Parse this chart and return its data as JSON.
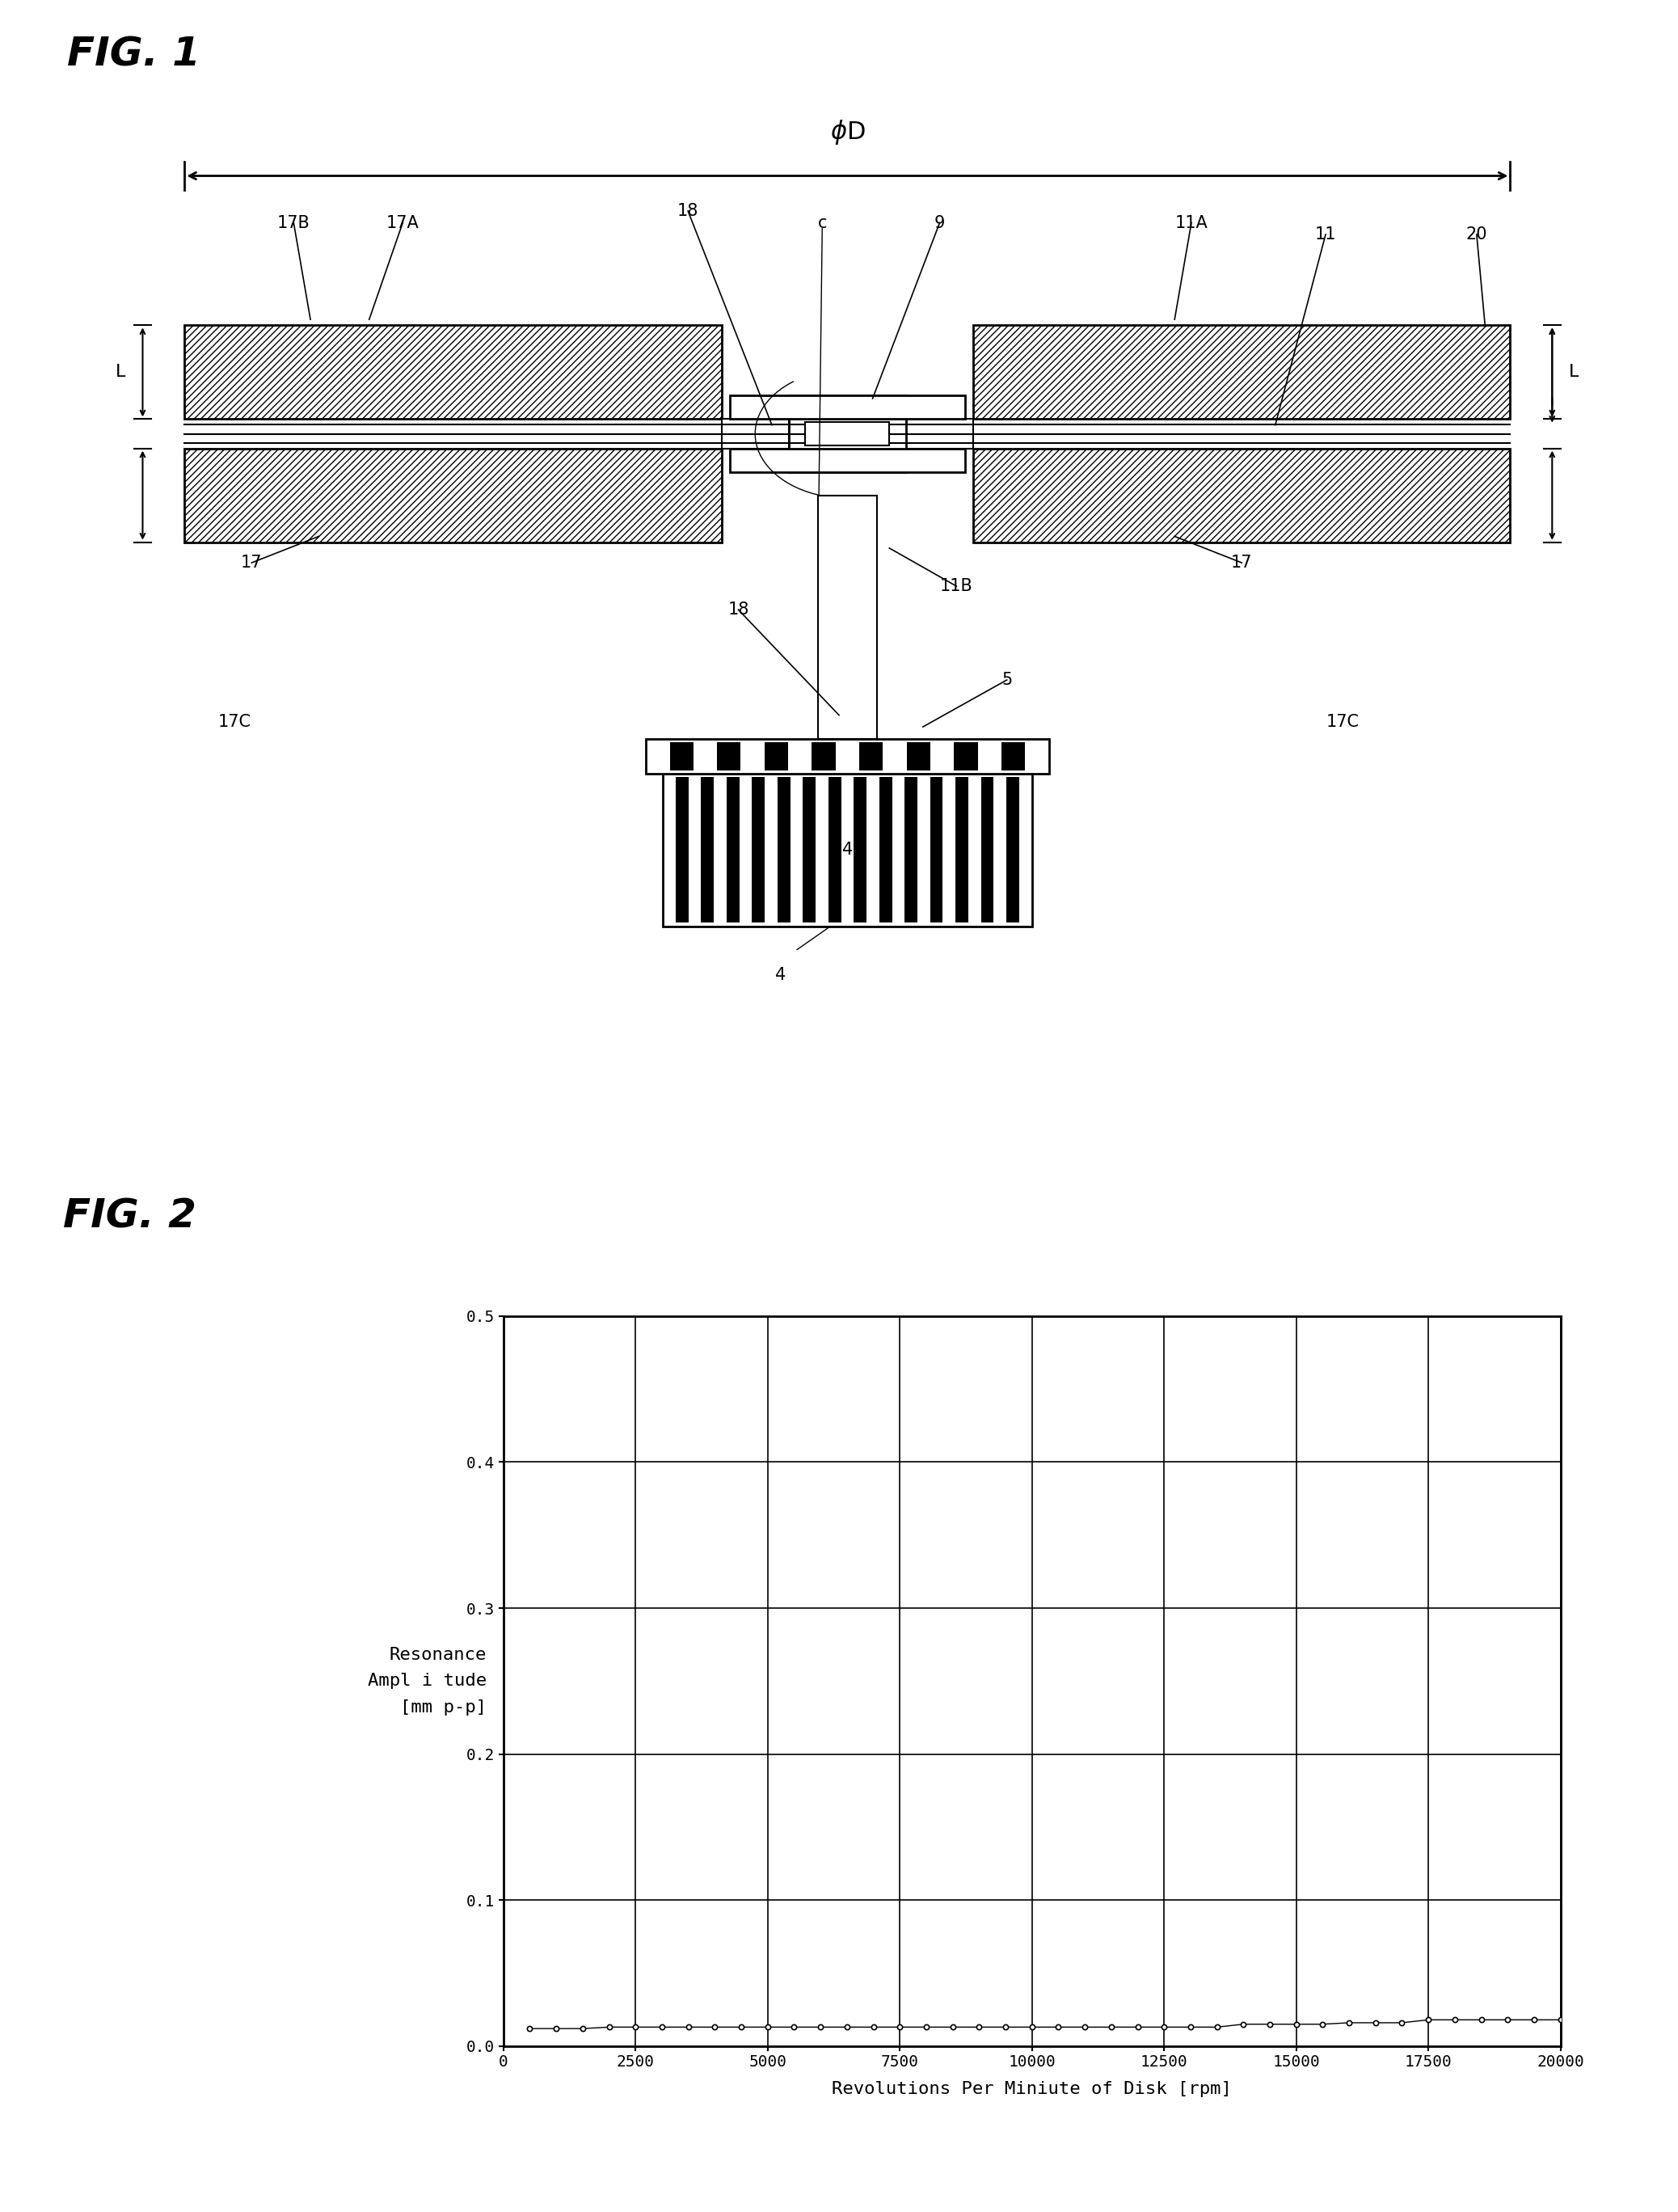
{
  "fig_width": 20.76,
  "fig_height": 27.36,
  "bg_color": "#ffffff",
  "fig1_title": "FIG. 1",
  "fig2_title": "FIG. 2",
  "fig2_ylabel_lines": [
    "Resonance",
    "Ampl i tude",
    "[mm p-p]"
  ],
  "fig2_xlabel": "Revolutions Per Miniute of Disk [rpm]",
  "fig2_xticks": [
    0,
    2500,
    5000,
    7500,
    10000,
    12500,
    15000,
    17500,
    20000
  ],
  "fig2_yticks": [
    0.0,
    0.1,
    0.2,
    0.3,
    0.4,
    0.5
  ],
  "fig2_ylim": [
    0.0,
    0.5
  ],
  "fig2_xlim": [
    0,
    20000
  ],
  "data_x": [
    500,
    1000,
    1500,
    2000,
    2500,
    3000,
    3500,
    4000,
    4500,
    5000,
    5500,
    6000,
    6500,
    7000,
    7500,
    8000,
    8500,
    9000,
    9500,
    10000,
    10500,
    11000,
    11500,
    12000,
    12500,
    13000,
    13500,
    14000,
    14500,
    15000,
    15500,
    16000,
    16500,
    17000,
    17500,
    18000,
    18500,
    19000,
    19500,
    20000
  ],
  "data_y": [
    0.012,
    0.012,
    0.012,
    0.013,
    0.013,
    0.013,
    0.013,
    0.013,
    0.013,
    0.013,
    0.013,
    0.013,
    0.013,
    0.013,
    0.013,
    0.013,
    0.013,
    0.013,
    0.013,
    0.013,
    0.013,
    0.013,
    0.013,
    0.013,
    0.013,
    0.013,
    0.013,
    0.015,
    0.015,
    0.015,
    0.015,
    0.016,
    0.016,
    0.016,
    0.018,
    0.018,
    0.018,
    0.018,
    0.018,
    0.018
  ]
}
